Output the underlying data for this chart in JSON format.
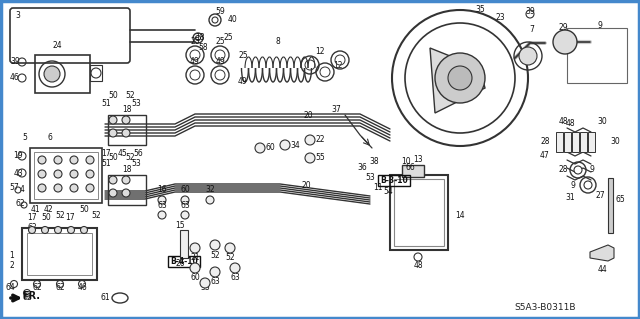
{
  "fig_width": 6.4,
  "fig_height": 3.19,
  "dpi": 100,
  "background_color": "#ffffff",
  "border_color": "#4488cc",
  "border_linewidth": 2.5,
  "diagram_code": "S5A3-B0311B",
  "line_color": "#333333",
  "label_color": "#111111",
  "label_fs": 5.5,
  "cross_ref_b310": "B-3-10",
  "cross_ref_b410": "B-4-10"
}
